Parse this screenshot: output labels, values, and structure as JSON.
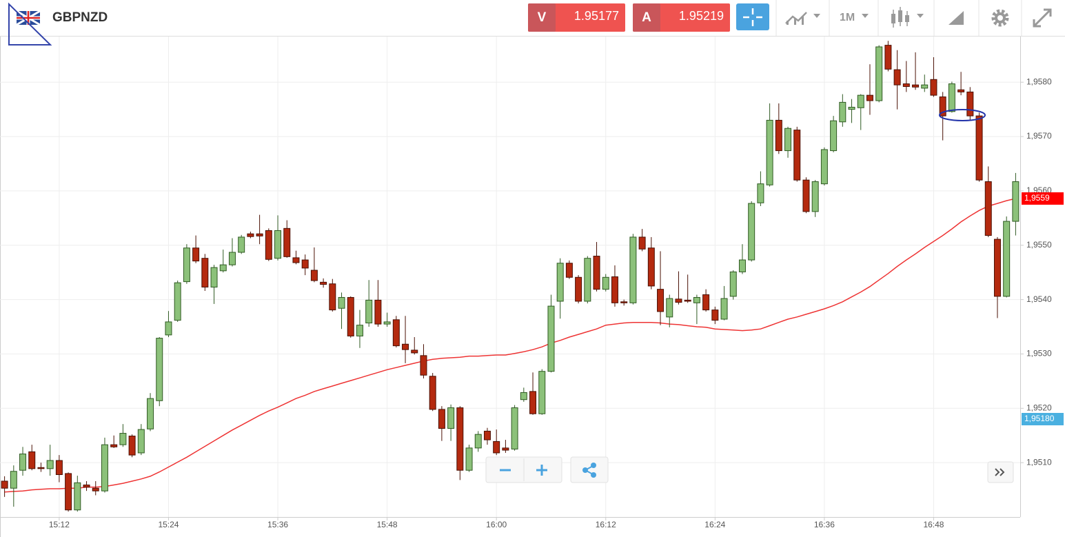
{
  "header": {
    "symbol": "GBPNZD",
    "sell_label": "V",
    "sell_price": "1.95177",
    "buy_label": "A",
    "buy_price": "1.95219",
    "timeframe": "1M"
  },
  "chart_data": {
    "type": "candlestick",
    "categories": [
      null,
      null,
      null,
      null,
      null,
      null,
      "15:12",
      null,
      null,
      null,
      null,
      null,
      null,
      null,
      null,
      null,
      null,
      null,
      "15:24",
      null,
      null,
      null,
      null,
      null,
      null,
      null,
      null,
      null,
      null,
      null,
      "15:36",
      null,
      null,
      null,
      null,
      null,
      null,
      null,
      null,
      null,
      null,
      null,
      "15:48",
      null,
      null,
      null,
      null,
      null,
      null,
      null,
      null,
      null,
      null,
      null,
      "16:00",
      null,
      null,
      null,
      null,
      null,
      null,
      null,
      null,
      null,
      null,
      null,
      "16:12",
      null,
      null,
      null,
      null,
      null,
      null,
      null,
      null,
      null,
      null,
      null,
      "16:24",
      null,
      null,
      null,
      null,
      null,
      null,
      null,
      null,
      null,
      null,
      null,
      "16:36",
      null,
      null,
      null,
      null,
      null,
      null,
      null,
      null,
      null,
      null,
      null,
      "16:48",
      null,
      null,
      null,
      null,
      null,
      null,
      null,
      null,
      null
    ],
    "open": [
      1.95066,
      1.95053,
      1.95086,
      1.9512,
      1.95091,
      1.95089,
      1.95104,
      1.9508,
      1.95013,
      1.95059,
      1.95053,
      1.95048,
      1.95133,
      1.95133,
      1.95149,
      1.95118,
      1.95162,
      1.95214,
      1.95335,
      1.95362,
      1.95433,
      1.95495,
      1.95476,
      1.95423,
      1.95453,
      1.95464,
      1.95487,
      1.95521,
      1.95521,
      1.95527,
      1.95476,
      1.95531,
      1.95477,
      1.95473,
      1.95454,
      1.95432,
      1.95429,
      1.95384,
      1.95404,
      1.95333,
      1.95357,
      1.95399,
      1.95355,
      1.95363,
      1.95318,
      1.95307,
      1.95297,
      1.95259,
      1.95198,
      1.95163,
      1.95201,
      1.95086,
      1.95127,
      1.95158,
      1.95139,
      1.95127,
      1.95125,
      1.95216,
      1.95231,
      1.9519,
      1.95268,
      1.95397,
      1.95467,
      1.95441,
      1.95397,
      1.9548,
      1.95419,
      1.95442,
      1.95396,
      1.95394,
      1.95515,
      1.95495,
      1.95419,
      1.95368,
      1.95401,
      1.95399,
      1.95394,
      1.95409,
      1.95381,
      1.95364,
      1.95406,
      1.95451,
      1.95473,
      1.95578,
      1.95611,
      1.9573,
      1.95674,
      1.95712,
      1.9562,
      1.95562,
      1.95613,
      1.95674,
      1.95727,
      1.9575,
      1.95753,
      1.95776,
      1.95766,
      1.95868,
      1.95823,
      1.95797,
      1.95795,
      1.95789,
      1.95805,
      1.95773,
      1.95746,
      1.95786,
      1.95782,
      1.95738,
      1.95617,
      1.95511,
      1.95406,
      1.95544
    ],
    "high": [
      1.95075,
      1.95095,
      1.95129,
      1.95133,
      1.951,
      1.95133,
      1.95114,
      1.95082,
      1.95076,
      1.95066,
      1.95066,
      1.95146,
      1.9515,
      1.95171,
      1.95152,
      1.95171,
      1.95228,
      1.95331,
      1.95379,
      1.95435,
      1.95502,
      1.95518,
      1.95484,
      1.95464,
      1.95492,
      1.95513,
      1.95519,
      1.95525,
      1.95556,
      1.95531,
      1.95555,
      1.95546,
      1.9549,
      1.95483,
      1.95496,
      1.95439,
      1.95438,
      1.95413,
      1.95406,
      1.95381,
      1.95436,
      1.95436,
      1.95376,
      1.9537,
      1.9537,
      1.95331,
      1.95318,
      1.95265,
      1.95204,
      1.95207,
      1.95204,
      1.95133,
      1.95158,
      1.95164,
      1.95161,
      1.95142,
      1.95206,
      1.95238,
      1.95266,
      1.95272,
      1.95409,
      1.95476,
      1.95472,
      1.95445,
      1.9548,
      1.95506,
      1.95447,
      1.95463,
      1.954,
      1.95521,
      1.9553,
      1.95515,
      1.95489,
      1.95409,
      1.95452,
      1.95446,
      1.95409,
      1.95419,
      1.95387,
      1.95425,
      1.95454,
      1.95502,
      1.95581,
      1.95636,
      1.95761,
      1.95761,
      1.95718,
      1.95718,
      1.95625,
      1.9562,
      1.9568,
      1.95738,
      1.95778,
      1.95769,
      1.95778,
      1.95833,
      1.95868,
      1.95876,
      1.95859,
      1.95839,
      1.95855,
      1.95814,
      1.95846,
      1.95782,
      1.95801,
      1.95819,
      1.95791,
      1.95744,
      1.95645,
      1.95515,
      1.95553,
      1.95633
    ],
    "low": [
      1.95037,
      1.95019,
      1.95076,
      1.95086,
      1.95083,
      1.95076,
      1.95064,
      1.9501,
      1.9501,
      1.95048,
      1.9504,
      1.95045,
      1.95127,
      1.95129,
      1.9511,
      1.95114,
      1.95158,
      1.95204,
      1.95331,
      1.95359,
      1.95429,
      1.95467,
      1.95416,
      1.95392,
      1.9545,
      1.95461,
      1.95484,
      1.95513,
      1.95502,
      1.95471,
      1.95472,
      1.95477,
      1.95465,
      1.95445,
      1.95432,
      1.95422,
      1.95378,
      1.95346,
      1.9533,
      1.95311,
      1.9535,
      1.9535,
      1.9535,
      1.95312,
      1.95283,
      1.95299,
      1.95255,
      1.95195,
      1.9514,
      1.9514,
      1.95068,
      1.95083,
      1.9512,
      1.95133,
      1.95114,
      1.95118,
      1.95122,
      1.95212,
      1.95188,
      1.95188,
      1.95266,
      1.95365,
      1.95438,
      1.95393,
      1.95393,
      1.95415,
      1.95415,
      1.95387,
      1.95389,
      1.95391,
      1.95489,
      1.95419,
      1.95353,
      1.95349,
      1.95391,
      1.95394,
      1.95355,
      1.95378,
      1.95355,
      1.95362,
      1.954,
      1.95447,
      1.9547,
      1.95572,
      1.95608,
      1.95668,
      1.95661,
      1.95617,
      1.95559,
      1.95552,
      1.9561,
      1.95671,
      1.95718,
      1.95725,
      1.95712,
      1.9574,
      1.95763,
      1.9582,
      1.9575,
      1.95782,
      1.95786,
      1.95782,
      1.95773,
      1.95693,
      1.95744,
      1.95776,
      1.95731,
      1.95617,
      1.95515,
      1.95366,
      1.95404,
      1.95518
    ],
    "close": [
      1.95053,
      1.95084,
      1.95116,
      1.95089,
      1.95089,
      1.95104,
      1.95078,
      1.95013,
      1.95063,
      1.95055,
      1.95048,
      1.95133,
      1.95129,
      1.95154,
      1.95114,
      1.95161,
      1.95218,
      1.95329,
      1.95359,
      1.95431,
      1.95495,
      1.95471,
      1.95423,
      1.95459,
      1.95464,
      1.95487,
      1.95515,
      1.95516,
      1.95517,
      1.95474,
      1.95527,
      1.95479,
      1.95468,
      1.95458,
      1.95435,
      1.95428,
      1.95381,
      1.95404,
      1.95333,
      1.95353,
      1.95399,
      1.95355,
      1.95359,
      1.95315,
      1.95308,
      1.95302,
      1.95261,
      1.95198,
      1.95163,
      1.95201,
      1.95086,
      1.95127,
      1.95152,
      1.95142,
      1.95118,
      1.95123,
      1.95201,
      1.95229,
      1.9519,
      1.95268,
      1.95388,
      1.95467,
      1.95441,
      1.95397,
      1.95476,
      1.95419,
      1.95441,
      1.95394,
      1.95394,
      1.95515,
      1.95493,
      1.95425,
      1.95378,
      1.95402,
      1.95395,
      1.95397,
      1.95404,
      1.95381,
      1.95362,
      1.95402,
      1.95451,
      1.95473,
      1.95577,
      1.95613,
      1.9573,
      1.95674,
      1.95715,
      1.9562,
      1.95562,
      1.95617,
      1.95676,
      1.95729,
      1.95763,
      1.95754,
      1.95776,
      1.95766,
      1.95865,
      1.95824,
      1.95795,
      1.95792,
      1.95791,
      1.95795,
      1.95776,
      1.95738,
      1.95797,
      1.95782,
      1.95738,
      1.9562,
      1.95518,
      1.95406,
      1.95544,
      1.95617
    ],
    "up_color": "#8cc17a",
    "up_edge": "#2f5a22",
    "down_color": "#b42a0f",
    "down_edge": "#4a1004",
    "ma": {
      "color": "#ee3333",
      "values": [
        1.95046,
        1.95047,
        1.95048,
        1.9505,
        1.95051,
        1.95052,
        1.95052,
        1.95053,
        1.95053,
        1.95055,
        1.95055,
        1.95056,
        1.95059,
        1.95062,
        1.95066,
        1.9507,
        1.95075,
        1.95083,
        1.95092,
        1.95101,
        1.9511,
        1.9512,
        1.9513,
        1.9514,
        1.9515,
        1.9516,
        1.95169,
        1.95178,
        1.95187,
        1.95195,
        1.95202,
        1.9521,
        1.95218,
        1.95224,
        1.95231,
        1.95236,
        1.95241,
        1.95246,
        1.95251,
        1.95256,
        1.95261,
        1.95266,
        1.95271,
        1.95275,
        1.95279,
        1.95283,
        1.95287,
        1.9529,
        1.95292,
        1.95293,
        1.95294,
        1.95296,
        1.95296,
        1.95297,
        1.95298,
        1.95298,
        1.95301,
        1.95304,
        1.95308,
        1.95313,
        1.9532,
        1.95325,
        1.95331,
        1.95336,
        1.95341,
        1.95346,
        1.95353,
        1.95355,
        1.95357,
        1.95358,
        1.95358,
        1.95358,
        1.95357,
        1.95355,
        1.95354,
        1.95352,
        1.9535,
        1.95349,
        1.95346,
        1.95345,
        1.95344,
        1.95343,
        1.95344,
        1.95346,
        1.95352,
        1.95358,
        1.95364,
        1.95368,
        1.95373,
        1.95378,
        1.95383,
        1.95389,
        1.95396,
        1.95405,
        1.95414,
        1.95424,
        1.95436,
        1.95448,
        1.95461,
        1.95473,
        1.95484,
        1.95496,
        1.95507,
        1.95518,
        1.9553,
        1.95543,
        1.95554,
        1.95564,
        1.95572,
        1.95577,
        1.95582,
        1.95586
      ]
    },
    "ylim": [
      1.95,
      1.95884
    ],
    "yticks": [
      {
        "value": 1.951,
        "label": "1,9510"
      },
      {
        "value": 1.952,
        "label": "1,9520"
      },
      {
        "value": 1.953,
        "label": "1,9530"
      },
      {
        "value": 1.954,
        "label": "1,9540"
      },
      {
        "value": 1.955,
        "label": "1,9550"
      },
      {
        "value": 1.956,
        "label": "1,9560"
      },
      {
        "value": 1.957,
        "label": "1,9570"
      },
      {
        "value": 1.958,
        "label": "1,9580"
      }
    ],
    "grid": true,
    "price_tags": [
      {
        "label": "1,9559",
        "color": "#ff0000"
      },
      {
        "label": "1,95180",
        "color": "#4ab0e0"
      }
    ]
  }
}
